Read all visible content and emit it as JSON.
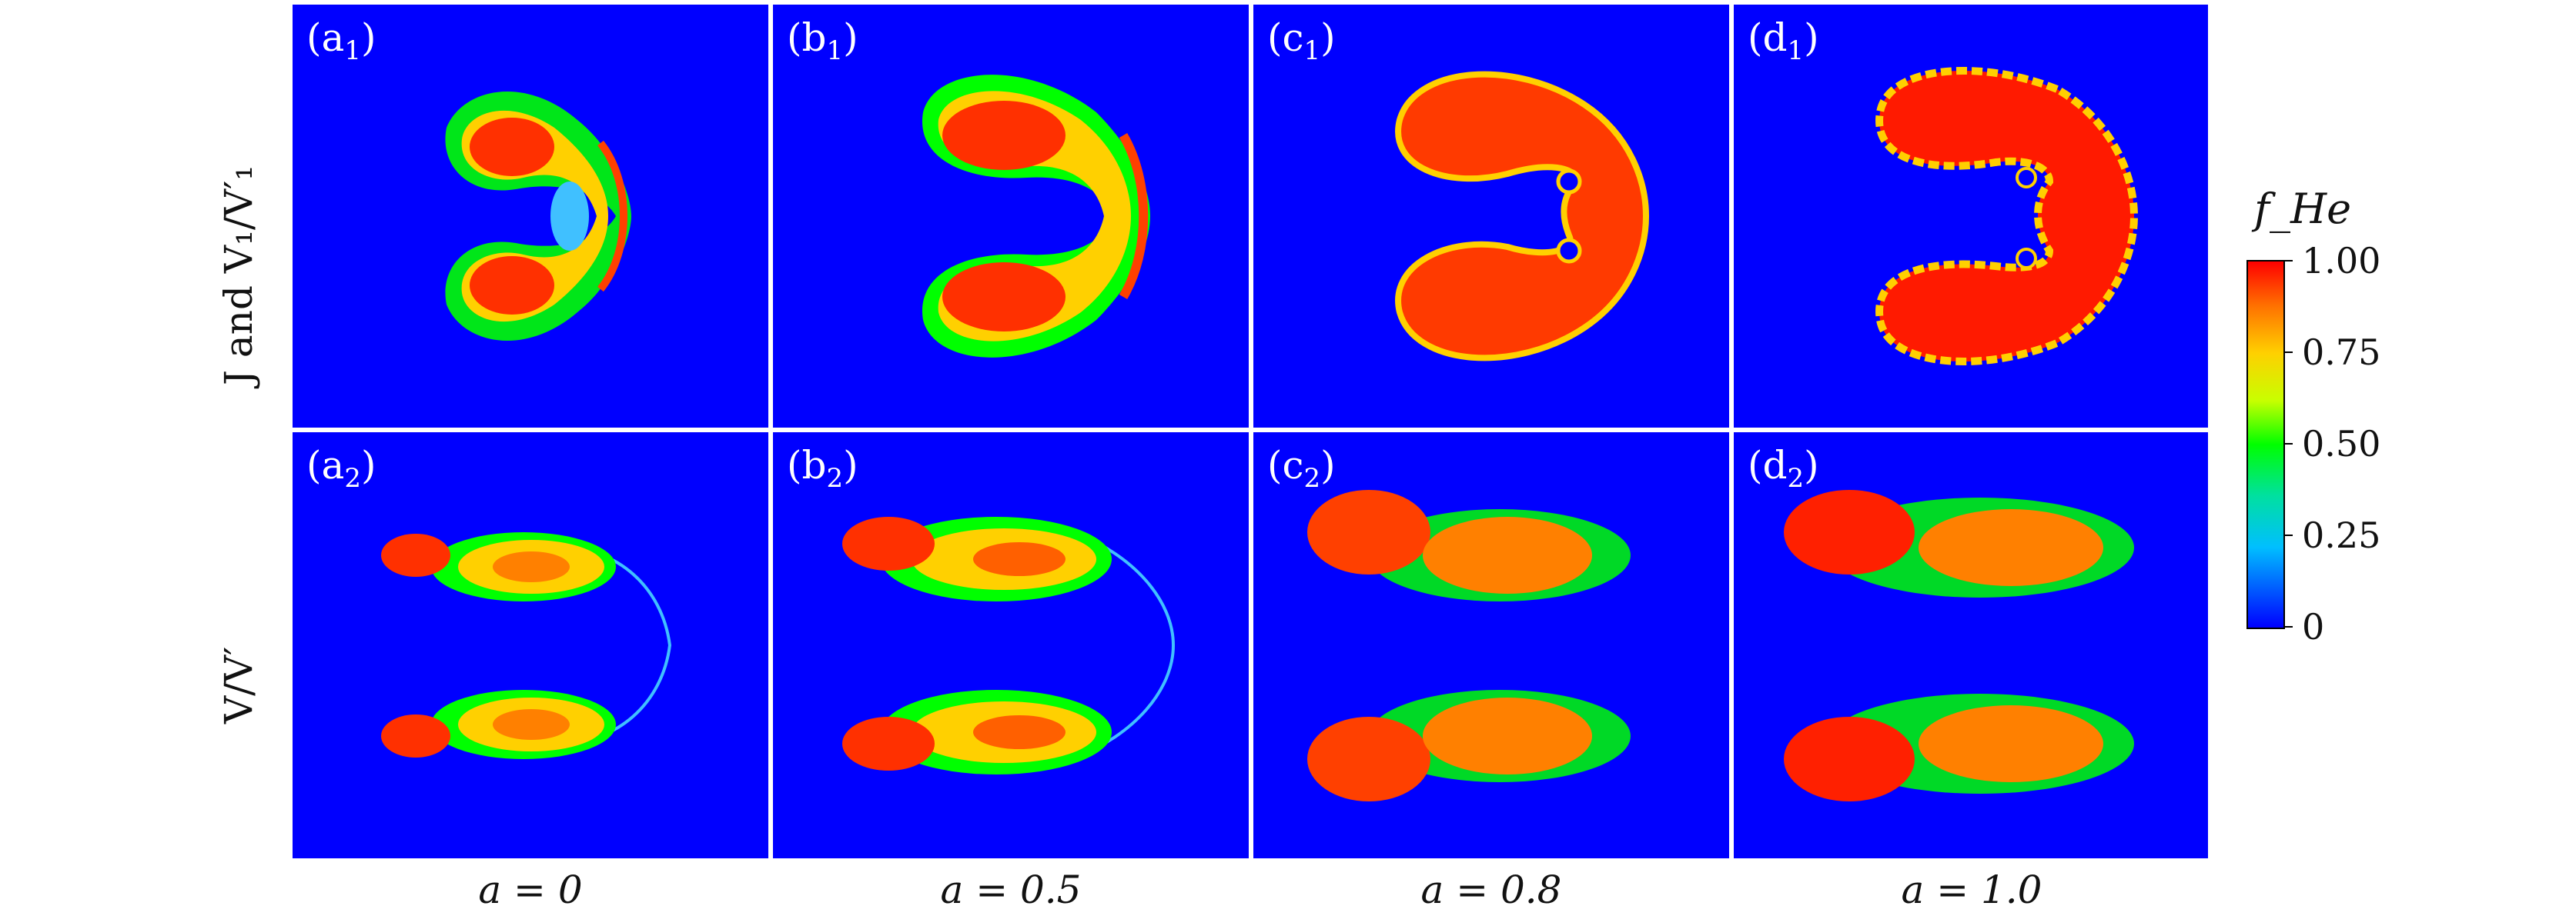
{
  "rows": [
    {
      "label": "J and V₁/V′₁"
    },
    {
      "label": "V/V′"
    }
  ],
  "columns": [
    {
      "label": "a = 0"
    },
    {
      "label": "a = 0.5"
    },
    {
      "label": "a = 0.8"
    },
    {
      "label": "a = 1.0"
    }
  ],
  "panels": [
    {
      "letter": "a",
      "sub": "1"
    },
    {
      "letter": "b",
      "sub": "1"
    },
    {
      "letter": "c",
      "sub": "1"
    },
    {
      "letter": "d",
      "sub": "1"
    },
    {
      "letter": "a",
      "sub": "2"
    },
    {
      "letter": "b",
      "sub": "2"
    },
    {
      "letter": "c",
      "sub": "2"
    },
    {
      "letter": "d",
      "sub": "2"
    }
  ],
  "colorbar": {
    "title": "f_He",
    "ticks": [
      "1.00",
      "0.75",
      "0.50",
      "0.25",
      "0"
    ],
    "colors": {
      "low": "#0000ff",
      "high": "#ff0000",
      "background": "#0000ff"
    }
  }
}
